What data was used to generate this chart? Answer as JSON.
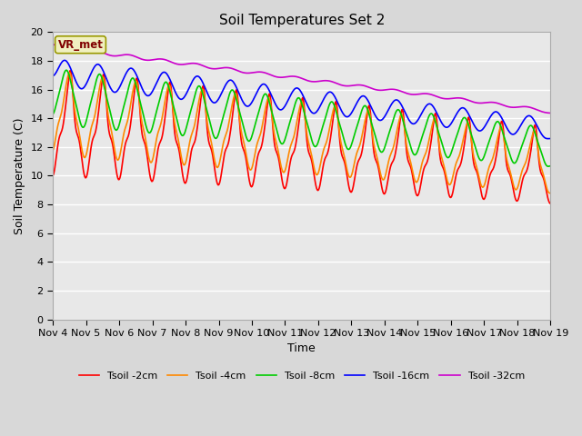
{
  "title": "Soil Temperatures Set 2",
  "xlabel": "Time",
  "ylabel": "Soil Temperature (C)",
  "ylim": [
    0,
    20
  ],
  "yticks": [
    0,
    2,
    4,
    6,
    8,
    10,
    12,
    14,
    16,
    18,
    20
  ],
  "xtick_labels": [
    "Nov 4",
    "Nov 5",
    "Nov 6",
    "Nov 7",
    "Nov 8",
    "Nov 9",
    "Nov 10",
    "Nov 11",
    "Nov 12",
    "Nov 13",
    "Nov 14",
    "Nov 15",
    "Nov 16",
    "Nov 17",
    "Nov 18",
    "Nov 19"
  ],
  "annotation_text": "VR_met",
  "bg_color": "#e8e8e8",
  "plot_bg": "#e8e8e8",
  "colors": {
    "Tsoil -2cm": "#ff0000",
    "Tsoil -4cm": "#ff8800",
    "Tsoil -8cm": "#00cc00",
    "Tsoil -16cm": "#0000ff",
    "Tsoil -32cm": "#cc00cc"
  },
  "line_width": 1.2,
  "series_labels": [
    "Tsoil -2cm",
    "Tsoil -4cm",
    "Tsoil -8cm",
    "Tsoil -16cm",
    "Tsoil -32cm"
  ]
}
